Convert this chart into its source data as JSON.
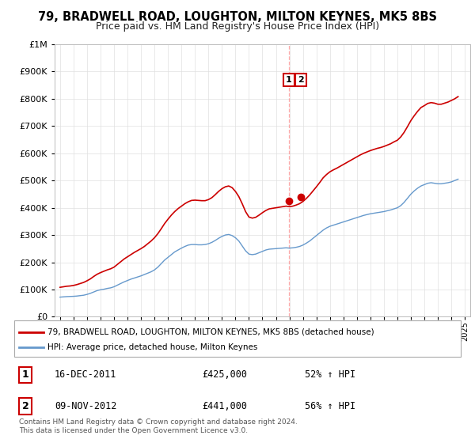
{
  "title": "79, BRADWELL ROAD, LOUGHTON, MILTON KEYNES, MK5 8BS",
  "subtitle": "Price paid vs. HM Land Registry's House Price Index (HPI)",
  "ylim": [
    0,
    1000000
  ],
  "xlim_start": 1994.6,
  "xlim_end": 2025.4,
  "title_fontsize": 10.5,
  "subtitle_fontsize": 9,
  "legend_line1": "79, BRADWELL ROAD, LOUGHTON, MILTON KEYNES, MK5 8BS (detached house)",
  "legend_line2": "HPI: Average price, detached house, Milton Keynes",
  "sale1_label": "1",
  "sale1_date": "16-DEC-2011",
  "sale1_price": "£425,000",
  "sale1_pct": "52% ↑ HPI",
  "sale1_year": 2011.96,
  "sale1_value": 425000,
  "sale2_label": "2",
  "sale2_date": "09-NOV-2012",
  "sale2_price": "£441,000",
  "sale2_pct": "56% ↑ HPI",
  "sale2_year": 2012.86,
  "sale2_value": 441000,
  "red_color": "#cc0000",
  "blue_color": "#6699cc",
  "annotation_box_color": "#cc0000",
  "footer_text": "Contains HM Land Registry data © Crown copyright and database right 2024.\nThis data is licensed under the Open Government Licence v3.0.",
  "hpi_years": [
    1995.0,
    1995.25,
    1995.5,
    1995.75,
    1996.0,
    1996.25,
    1996.5,
    1996.75,
    1997.0,
    1997.25,
    1997.5,
    1997.75,
    1998.0,
    1998.25,
    1998.5,
    1998.75,
    1999.0,
    1999.25,
    1999.5,
    1999.75,
    2000.0,
    2000.25,
    2000.5,
    2000.75,
    2001.0,
    2001.25,
    2001.5,
    2001.75,
    2002.0,
    2002.25,
    2002.5,
    2002.75,
    2003.0,
    2003.25,
    2003.5,
    2003.75,
    2004.0,
    2004.25,
    2004.5,
    2004.75,
    2005.0,
    2005.25,
    2005.5,
    2005.75,
    2006.0,
    2006.25,
    2006.5,
    2006.75,
    2007.0,
    2007.25,
    2007.5,
    2007.75,
    2008.0,
    2008.25,
    2008.5,
    2008.75,
    2009.0,
    2009.25,
    2009.5,
    2009.75,
    2010.0,
    2010.25,
    2010.5,
    2010.75,
    2011.0,
    2011.25,
    2011.5,
    2011.75,
    2012.0,
    2012.25,
    2012.5,
    2012.75,
    2013.0,
    2013.25,
    2013.5,
    2013.75,
    2014.0,
    2014.25,
    2014.5,
    2014.75,
    2015.0,
    2015.25,
    2015.5,
    2015.75,
    2016.0,
    2016.25,
    2016.5,
    2016.75,
    2017.0,
    2017.25,
    2017.5,
    2017.75,
    2018.0,
    2018.25,
    2018.5,
    2018.75,
    2019.0,
    2019.25,
    2019.5,
    2019.75,
    2020.0,
    2020.25,
    2020.5,
    2020.75,
    2021.0,
    2021.25,
    2021.5,
    2021.75,
    2022.0,
    2022.25,
    2022.5,
    2022.75,
    2023.0,
    2023.25,
    2023.5,
    2023.75,
    2024.0,
    2024.25,
    2024.5
  ],
  "hpi_values": [
    72000,
    73000,
    74000,
    74500,
    75000,
    76000,
    77500,
    79000,
    82000,
    86000,
    91000,
    96000,
    99000,
    101000,
    104000,
    106000,
    110000,
    116000,
    122000,
    128000,
    133000,
    138000,
    142000,
    146000,
    150000,
    155000,
    160000,
    165000,
    172000,
    182000,
    195000,
    208000,
    218000,
    228000,
    238000,
    245000,
    252000,
    258000,
    263000,
    265000,
    265000,
    264000,
    264000,
    265000,
    268000,
    273000,
    280000,
    288000,
    295000,
    300000,
    302000,
    298000,
    290000,
    278000,
    260000,
    242000,
    230000,
    228000,
    230000,
    235000,
    240000,
    245000,
    248000,
    249000,
    250000,
    251000,
    252000,
    253000,
    252000,
    253000,
    255000,
    258000,
    263000,
    270000,
    278000,
    288000,
    298000,
    308000,
    318000,
    326000,
    332000,
    336000,
    340000,
    344000,
    348000,
    352000,
    356000,
    360000,
    364000,
    368000,
    372000,
    375000,
    378000,
    380000,
    382000,
    384000,
    386000,
    389000,
    392000,
    396000,
    400000,
    408000,
    420000,
    435000,
    450000,
    462000,
    472000,
    480000,
    485000,
    490000,
    492000,
    490000,
    488000,
    488000,
    490000,
    492000,
    495000,
    500000,
    505000
  ],
  "red_years": [
    1995.0,
    1995.25,
    1995.5,
    1995.75,
    1996.0,
    1996.25,
    1996.5,
    1996.75,
    1997.0,
    1997.25,
    1997.5,
    1997.75,
    1998.0,
    1998.25,
    1998.5,
    1998.75,
    1999.0,
    1999.25,
    1999.5,
    1999.75,
    2000.0,
    2000.25,
    2000.5,
    2000.75,
    2001.0,
    2001.25,
    2001.5,
    2001.75,
    2002.0,
    2002.25,
    2002.5,
    2002.75,
    2003.0,
    2003.25,
    2003.5,
    2003.75,
    2004.0,
    2004.25,
    2004.5,
    2004.75,
    2005.0,
    2005.25,
    2005.5,
    2005.75,
    2006.0,
    2006.25,
    2006.5,
    2006.75,
    2007.0,
    2007.25,
    2007.5,
    2007.75,
    2008.0,
    2008.25,
    2008.5,
    2008.75,
    2009.0,
    2009.25,
    2009.5,
    2009.75,
    2010.0,
    2010.25,
    2010.5,
    2010.75,
    2011.0,
    2011.25,
    2011.5,
    2011.75,
    2012.0,
    2012.25,
    2012.5,
    2012.75,
    2013.0,
    2013.25,
    2013.5,
    2013.75,
    2014.0,
    2014.25,
    2014.5,
    2014.75,
    2015.0,
    2015.25,
    2015.5,
    2015.75,
    2016.0,
    2016.25,
    2016.5,
    2016.75,
    2017.0,
    2017.25,
    2017.5,
    2017.75,
    2018.0,
    2018.25,
    2018.5,
    2018.75,
    2019.0,
    2019.25,
    2019.5,
    2019.75,
    2020.0,
    2020.25,
    2020.5,
    2020.75,
    2021.0,
    2021.25,
    2021.5,
    2021.75,
    2022.0,
    2022.25,
    2022.5,
    2022.75,
    2023.0,
    2023.25,
    2023.5,
    2023.75,
    2024.0,
    2024.25,
    2024.5
  ],
  "red_values": [
    108000,
    110000,
    112000,
    113000,
    115000,
    118000,
    122000,
    126000,
    132000,
    139000,
    148000,
    156000,
    162000,
    167000,
    172000,
    176000,
    182000,
    192000,
    202000,
    212000,
    220000,
    228000,
    236000,
    243000,
    250000,
    258000,
    268000,
    278000,
    290000,
    305000,
    323000,
    342000,
    358000,
    373000,
    386000,
    397000,
    406000,
    415000,
    422000,
    427000,
    428000,
    427000,
    426000,
    426000,
    430000,
    437000,
    448000,
    460000,
    470000,
    477000,
    480000,
    474000,
    460000,
    441000,
    415000,
    386000,
    366000,
    362000,
    365000,
    373000,
    382000,
    390000,
    396000,
    398000,
    400000,
    402000,
    404000,
    406000,
    404000,
    406000,
    410000,
    415000,
    423000,
    434000,
    447000,
    462000,
    477000,
    493000,
    510000,
    522000,
    532000,
    539000,
    545000,
    552000,
    559000,
    566000,
    573000,
    580000,
    587000,
    594000,
    600000,
    605000,
    610000,
    614000,
    618000,
    621000,
    625000,
    630000,
    635000,
    642000,
    648000,
    660000,
    677000,
    698000,
    720000,
    738000,
    754000,
    768000,
    775000,
    783000,
    786000,
    784000,
    780000,
    780000,
    784000,
    788000,
    794000,
    800000,
    808000
  ]
}
